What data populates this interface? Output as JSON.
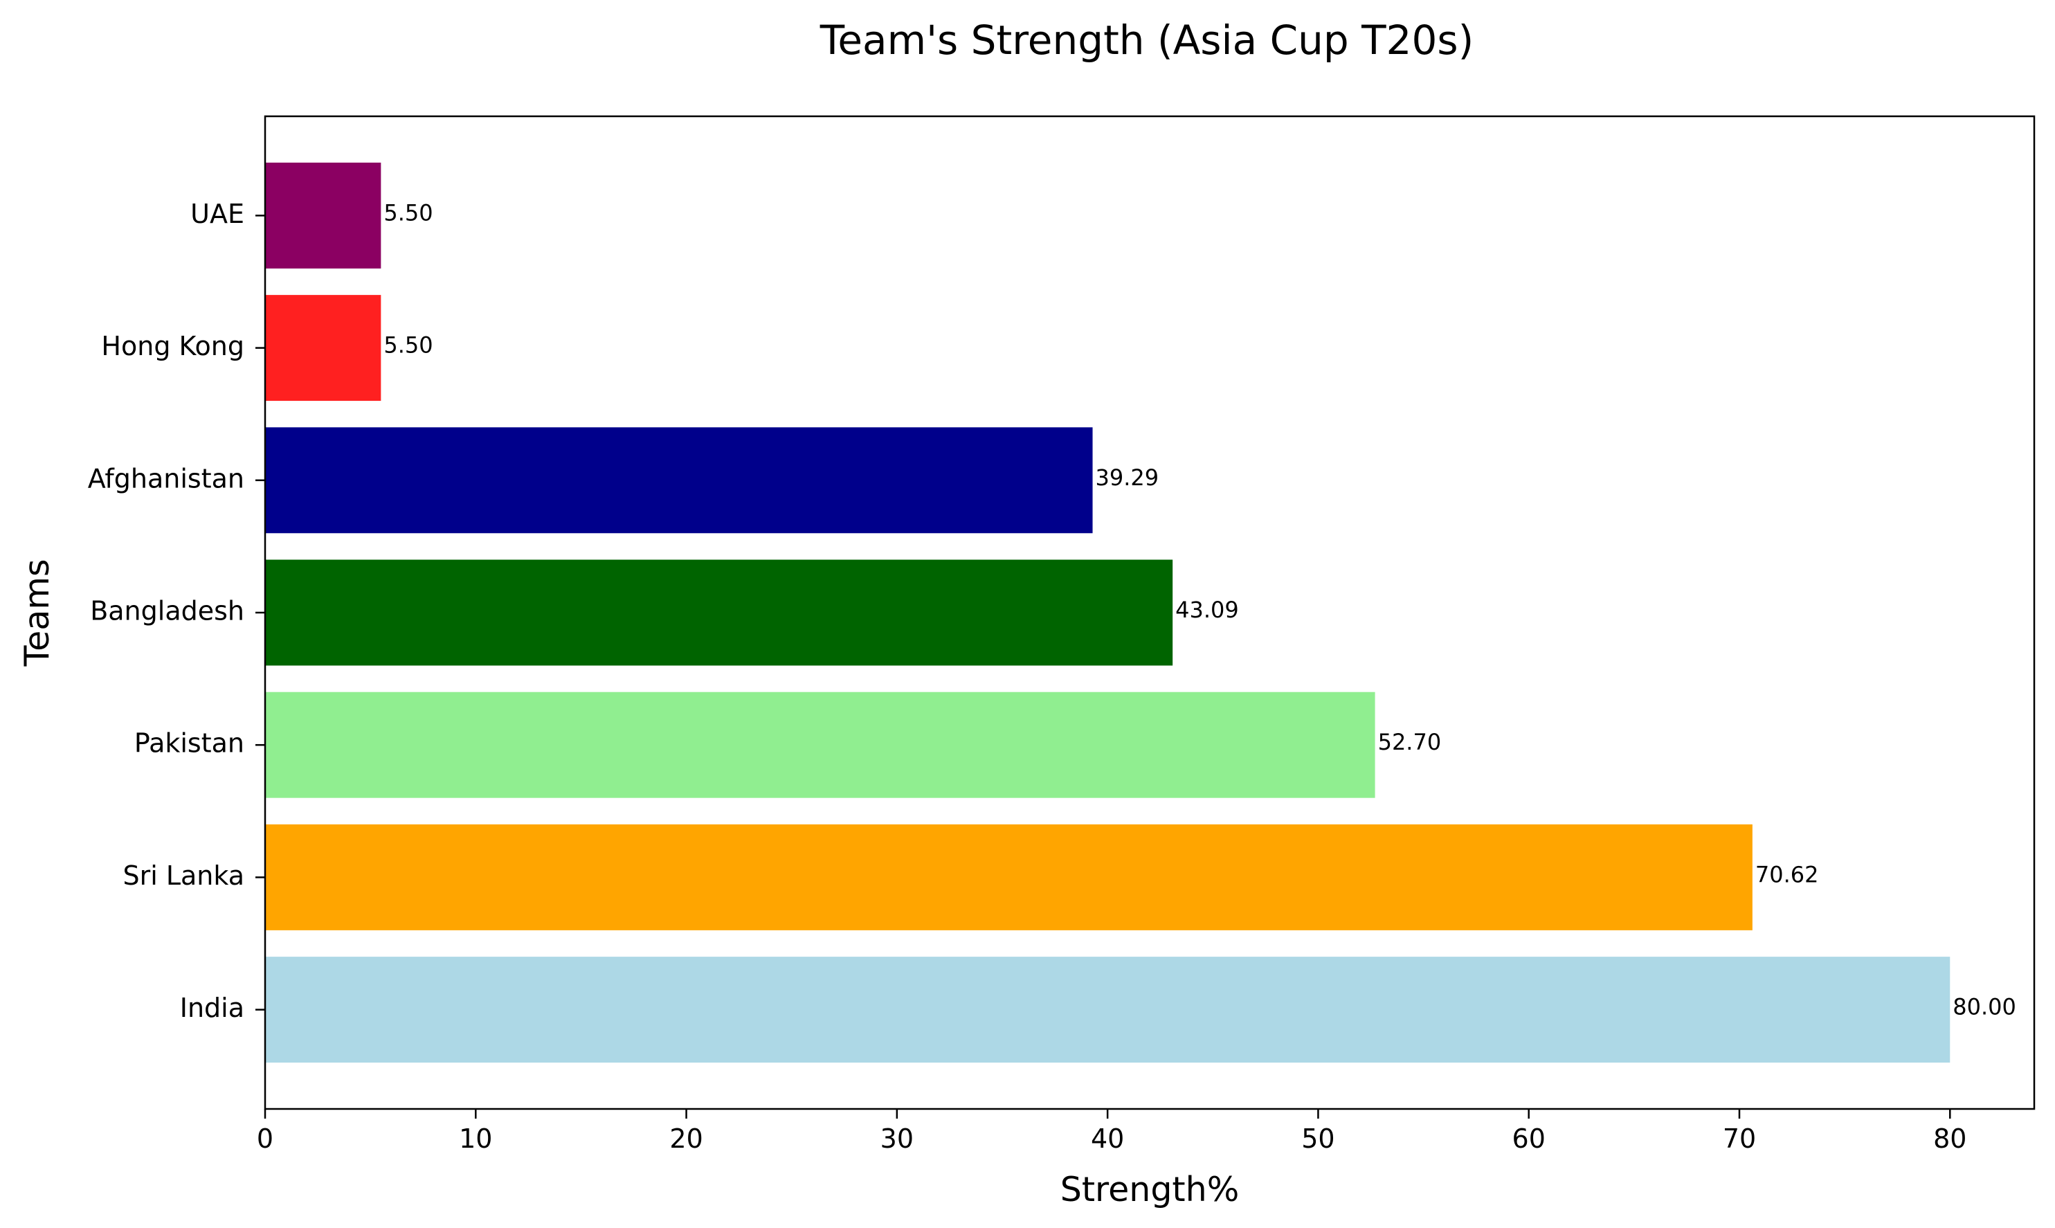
{
  "chart_data": {
    "type": "bar",
    "orientation": "horizontal",
    "title": "Team's Strength (Asia Cup T20s)",
    "xlabel": "Strength%",
    "ylabel": "Teams",
    "categories": [
      "India",
      "Sri Lanka",
      "Pakistan",
      "Bangladesh",
      "Afghanistan",
      "Hong Kong",
      "UAE"
    ],
    "values": [
      80.0,
      70.62,
      52.7,
      43.09,
      39.29,
      5.5,
      5.5
    ],
    "value_labels": [
      "80.00",
      "70.62",
      "52.70",
      "43.09",
      "39.29",
      "5.50",
      "5.50"
    ],
    "colors": [
      "#add8e6",
      "#ffa500",
      "#90ee90",
      "#006400",
      "#00008b",
      "#ff2020",
      "#8b0062"
    ],
    "xlim": [
      0,
      84
    ],
    "xticks": [
      0,
      10,
      20,
      30,
      40,
      50,
      60,
      70,
      80
    ],
    "grid": false,
    "legend": "none"
  }
}
